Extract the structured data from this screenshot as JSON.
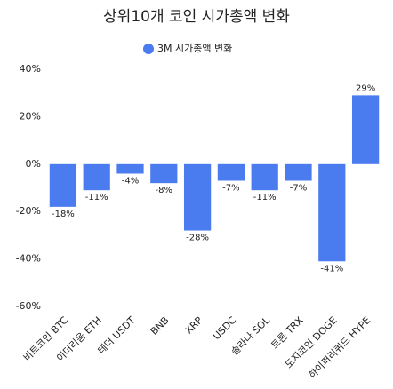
{
  "chart_data": {
    "type": "bar",
    "title": "상위10개 코인 시가총액 변화",
    "legend": "3M 시가총액 변화",
    "categories": [
      "비트코인 BTC",
      "이더리움 ETH",
      "테더 USDT",
      "BNB",
      "XRP",
      "USDC",
      "솔라나 SOL",
      "트론 TRX",
      "도지코인 DOGE",
      "하이퍼리퀴드 HYPE"
    ],
    "values": [
      -18,
      -11,
      -4,
      -8,
      -28,
      -7,
      -11,
      -7,
      -41,
      29
    ],
    "value_labels": [
      "-18%",
      "-11%",
      "-4%",
      "-8%",
      "-28%",
      "-7%",
      "-11%",
      "-7%",
      "-41%",
      "29%"
    ],
    "color": "#4a7cf0",
    "ylim": [
      -63,
      43
    ],
    "yticks": [
      {
        "value": 40,
        "label": "40%"
      },
      {
        "value": 20,
        "label": "20%"
      },
      {
        "value": 0,
        "label": "0%"
      },
      {
        "value": -20,
        "label": "-20%"
      },
      {
        "value": -40,
        "label": "-40%"
      },
      {
        "value": -60,
        "label": "-60%"
      }
    ],
    "grid": false
  }
}
